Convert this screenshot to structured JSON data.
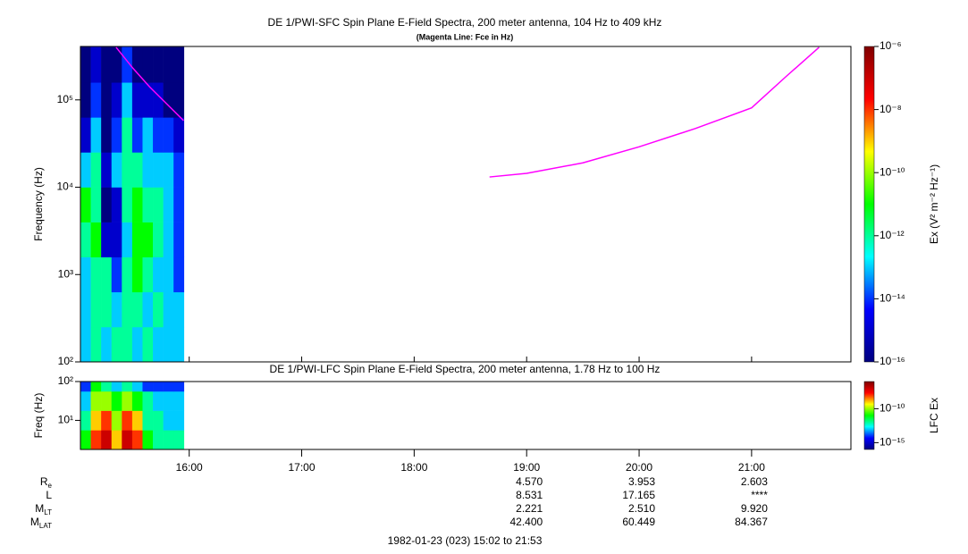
{
  "chart_data": [
    {
      "type": "heatmap",
      "title": "DE 1/PWI-SFC  Spin Plane E-Field Spectra, 200 meter antenna, 104 Hz to 409 kHz",
      "subtitle": "(Magenta Line: Fce in Hz)",
      "y_label": "Frequency (Hz)",
      "colorbar_label": "Ex (V² m⁻² Hz⁻¹)",
      "log_y": true,
      "xlim": [
        15.033,
        21.883
      ],
      "xticks": [
        {
          "value": 16,
          "label": "16:00"
        },
        {
          "value": 17,
          "label": "17:00"
        },
        {
          "value": 18,
          "label": "18:00"
        },
        {
          "value": 19,
          "label": "19:00"
        },
        {
          "value": 20,
          "label": "20:00"
        },
        {
          "value": 21,
          "label": "21:00"
        }
      ],
      "ylim": [
        100,
        409000
      ],
      "yticks": [
        {
          "value": 100,
          "label": "10²"
        },
        {
          "value": 1000,
          "label": "10³"
        },
        {
          "value": 10000,
          "label": "10⁴"
        },
        {
          "value": 100000,
          "label": "10⁵"
        }
      ],
      "clim": [
        1e-16,
        1e-06
      ],
      "cticks": [
        {
          "value": 1e-06,
          "label": "10⁻⁶"
        },
        {
          "value": 1e-08,
          "label": "10⁻⁸"
        },
        {
          "value": 1e-10,
          "label": "10⁻¹⁰"
        },
        {
          "value": 1e-12,
          "label": "10⁻¹²"
        },
        {
          "value": 1e-14,
          "label": "10⁻¹⁴"
        },
        {
          "value": 1e-16,
          "label": "10⁻¹⁶"
        }
      ],
      "colormap": [
        "#00007f",
        "#0000ff",
        "#00ffff",
        "#00ff00",
        "#ffff00",
        "#ff0000",
        "#7f0000"
      ],
      "x_bins": [
        15.033,
        15.125,
        15.217,
        15.309,
        15.401,
        15.493,
        15.585,
        15.677,
        15.769,
        15.861,
        15.953
      ],
      "y_bins": [
        100,
        251,
        631,
        1585,
        3981,
        10000,
        25119,
        63096,
        158489,
        409000
      ],
      "z": [
        [
          1e-13,
          1e-12,
          1e-13,
          1e-12,
          1e-12,
          1e-13,
          1e-12,
          1e-13,
          1e-13,
          1e-13
        ],
        [
          1e-13,
          1e-12,
          1e-12,
          1e-13,
          1e-12,
          1e-12,
          1e-13,
          1e-12,
          1e-13,
          1e-13
        ],
        [
          1e-13,
          1e-12,
          1e-12,
          1e-14,
          1e-12,
          1e-11,
          1e-12,
          1e-13,
          1e-13,
          1e-14
        ],
        [
          1e-12,
          1e-11,
          1e-15,
          1e-15,
          1e-13,
          1e-11,
          1e-11,
          1e-12,
          1e-13,
          1e-14
        ],
        [
          1e-11,
          1e-12,
          1e-16,
          1e-15,
          1e-12,
          1e-11,
          1e-12,
          1e-12,
          1e-13,
          1e-14
        ],
        [
          1e-13,
          1e-12,
          1e-15,
          1e-13,
          1e-12,
          1e-12,
          1e-13,
          1e-13,
          1e-13,
          1e-14
        ],
        [
          1e-15,
          1e-13,
          1e-16,
          1e-14,
          1e-12,
          1e-14,
          1e-13,
          1e-14,
          1e-14,
          1e-15
        ],
        [
          1e-16,
          1e-14,
          1e-16,
          1e-15,
          1e-13,
          1e-15,
          1e-15,
          1e-15,
          1e-16,
          1e-16
        ],
        [
          1e-16,
          1e-15,
          1e-16,
          1e-16,
          1e-14,
          1e-16,
          1e-16,
          1e-16,
          1e-16,
          1e-16
        ]
      ],
      "series": [
        {
          "color": "#ff00ff",
          "x": [
            15.35,
            15.5,
            15.65,
            15.8,
            15.95,
            17.5,
            18.67,
            19.0,
            19.5,
            20.0,
            20.5,
            21.0,
            21.3,
            21.6
          ],
          "values": [
            400000,
            230000,
            140000,
            90000,
            58000,
            null,
            13100,
            14400,
            19000,
            29000,
            47000,
            81000,
            182000,
            400000
          ]
        }
      ]
    },
    {
      "type": "heatmap",
      "title": "DE 1/PWI-LFC  Spin Plane E-Field Spectra, 200 meter antenna, 1.78 Hz to 100 Hz",
      "y_label": "Freq (Hz)",
      "colorbar_label": "LFC Ex",
      "log_y": true,
      "xlim": [
        15.033,
        21.883
      ],
      "ylim": [
        1.78,
        100
      ],
      "yticks": [
        {
          "value": 10,
          "label": "10¹"
        },
        {
          "value": 100,
          "label": "10²"
        }
      ],
      "clim": [
        1e-16,
        1e-06
      ],
      "cticks": [
        {
          "value": 1e-10,
          "label": "10⁻¹⁰"
        },
        {
          "value": 1e-15,
          "label": "10⁻¹⁵"
        }
      ],
      "colormap": [
        "#00007f",
        "#0000ff",
        "#00ffff",
        "#00ff00",
        "#ffff00",
        "#ff0000",
        "#7f0000"
      ],
      "x_bins": [
        15.033,
        15.125,
        15.217,
        15.309,
        15.401,
        15.493,
        15.585,
        15.677,
        15.769,
        15.861,
        15.953
      ],
      "y_bins": [
        1.78,
        5.6,
        17.8,
        56,
        100
      ],
      "z": [
        [
          1e-11,
          1e-08,
          1e-07,
          1e-09,
          1e-07,
          1e-08,
          1e-11,
          1e-12,
          1e-12,
          1e-12
        ],
        [
          1e-12,
          1e-09,
          1e-08,
          1e-10,
          1e-08,
          1e-09,
          1e-12,
          1e-12,
          1e-13,
          1e-13
        ],
        [
          1e-13,
          1e-10,
          1e-10,
          1e-11,
          1e-10,
          1e-11,
          1e-12,
          1e-13,
          1e-13,
          1e-13
        ],
        [
          1e-14,
          1e-11,
          1e-12,
          1e-13,
          1e-12,
          1e-13,
          1e-14,
          1e-14,
          1e-14,
          1e-14
        ]
      ]
    }
  ],
  "ephemeris": {
    "x": [
      19,
      20,
      21
    ],
    "rows": [
      {
        "label": "R",
        "sub": "e",
        "values": [
          "4.570",
          "3.953",
          "2.603"
        ]
      },
      {
        "label": "L",
        "values": [
          "8.531",
          "17.165",
          "****"
        ]
      },
      {
        "label": "M",
        "sub": "LT",
        "values": [
          "2.221",
          "2.510",
          "9.920"
        ]
      },
      {
        "label": "M",
        "sub": "LAT",
        "values": [
          "42.400",
          "60.449",
          "84.367"
        ]
      }
    ]
  },
  "footer": "1982-01-23 (023) 15:02 to 21:53"
}
